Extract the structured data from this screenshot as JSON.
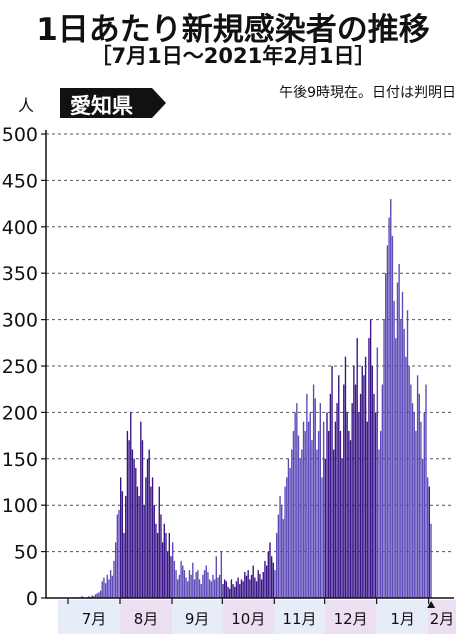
{
  "title": "1日あたり新規感染者の推移",
  "subtitle": "［7月1日〜2021年2月1日］",
  "region_label": "愛知県",
  "note": "午後9時現在。日付は判明日",
  "unit_label": "人",
  "colors": {
    "bar_dark": "#3a1588",
    "bar_light": "#5d4ab8",
    "month_band_light": "#e6ecf8",
    "month_band_pink": "#ecdff2",
    "region_bg": "#111111"
  },
  "chart_data": {
    "type": "bar",
    "ylabel": "人",
    "ylim": [
      0,
      500
    ],
    "yticks": [
      0,
      50,
      100,
      150,
      200,
      250,
      300,
      350,
      400,
      450,
      500
    ],
    "grid": "dashed horizontal",
    "months": [
      "7月",
      "8月",
      "9月",
      "10月",
      "11月",
      "12月",
      "1月",
      "2月"
    ],
    "month_starts": [
      "7/1",
      "8/1",
      "9/1",
      "10/1",
      "11/1",
      "12/1",
      "1/1",
      "2/1"
    ],
    "series": [
      {
        "values": [
          0,
          0,
          1,
          0,
          1,
          0,
          1,
          1,
          2,
          1,
          0,
          1,
          2,
          1,
          3,
          2,
          4,
          5,
          6,
          8,
          18,
          22,
          16,
          25,
          20,
          30,
          24,
          40,
          60,
          90,
          95,
          130,
          115,
          70,
          110,
          180,
          170,
          200,
          160,
          150,
          140,
          120,
          110,
          190,
          170,
          100,
          130,
          150,
          160,
          120,
          130,
          100,
          80,
          70,
          120,
          90,
          60,
          80,
          70,
          50,
          70,
          45,
          60,
          40,
          30,
          20,
          25,
          40,
          35,
          30,
          22,
          18,
          30,
          25,
          38,
          20,
          28,
          30,
          20,
          15,
          25,
          30,
          35,
          28,
          20,
          18,
          25,
          20,
          45,
          22,
          25,
          50,
          15,
          20,
          18,
          12,
          10,
          20,
          15,
          12,
          18,
          22,
          15,
          20,
          18,
          28,
          24,
          30,
          20,
          25,
          35,
          22,
          18,
          30,
          26,
          20,
          28,
          40,
          35,
          50,
          60,
          45,
          38,
          30,
          70,
          90,
          110,
          100,
          85,
          120,
          130,
          150,
          140,
          160,
          180,
          200,
          210,
          175,
          150,
          160,
          190,
          180,
          220,
          190,
          200,
          170,
          230,
          215,
          160,
          180,
          210,
          130,
          190,
          150,
          200,
          180,
          220,
          250,
          160,
          190,
          210,
          240,
          180,
          150,
          230,
          260,
          200,
          180,
          170,
          210,
          250,
          230,
          280,
          200,
          220,
          250,
          240,
          260,
          190,
          280,
          300,
          250,
          220,
          200,
          270,
          160,
          180,
          230,
          300,
          350,
          380,
          410,
          430,
          390,
          320,
          280,
          340,
          360,
          300,
          330,
          290,
          260,
          310,
          250,
          230,
          210,
          200,
          180,
          240,
          220,
          190,
          150,
          200,
          230,
          130,
          120,
          80
        ]
      }
    ]
  }
}
